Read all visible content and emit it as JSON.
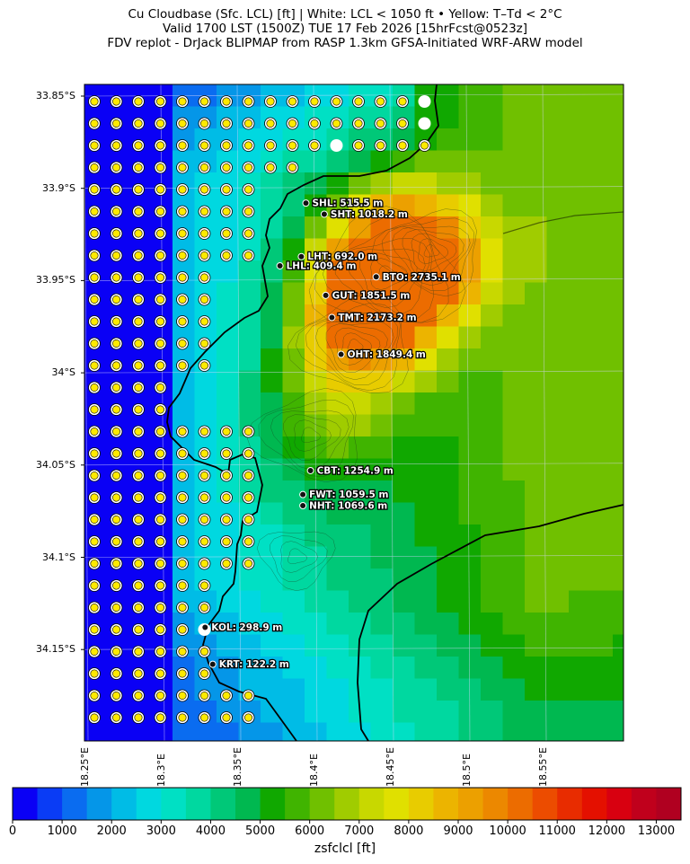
{
  "header": {
    "line1": "Cu Cloudbase (Sfc. LCL) [ft]  |  White: LCL < 1050 ft • Yellow: T–Td < 2°C",
    "line2": "Valid 1700 LST (1500Z) TUE 17 Feb 2026 [15hrFcst@0523z]",
    "line3": "FDV replot - DrJack BLIPMAP from RASP 1.3km GFSA-Initiated WRF-ARW model"
  },
  "map": {
    "lat_labels": [
      "33.85°S",
      "33.9°S",
      "33.95°S",
      "34°S",
      "34.05°S",
      "34.1°S",
      "34.15°S"
    ],
    "lon_labels": [
      "18.25°E",
      "18.3°E",
      "18.35°E",
      "18.4°E",
      "18.45°E",
      "18.5°E",
      "18.55°E"
    ],
    "stations": [
      {
        "code": "SHL",
        "label": "SHL: 515.5 m",
        "lat": -33.908,
        "lon": 18.395
      },
      {
        "code": "SHT",
        "label": "SHT: 1018.2 m",
        "lat": -33.914,
        "lon": 18.407
      },
      {
        "code": "LHT",
        "label": "LHT: 692.0 m",
        "lat": -33.937,
        "lon": 18.392
      },
      {
        "code": "LHL",
        "label": "LHL: 409.4 m",
        "lat": -33.942,
        "lon": 18.378
      },
      {
        "code": "BTO",
        "label": "BTO: 2735.1 m",
        "lat": -33.948,
        "lon": 18.441
      },
      {
        "code": "GUT",
        "label": "GUT: 1851.5 m",
        "lat": -33.958,
        "lon": 18.408
      },
      {
        "code": "TMT",
        "label": "TMT: 2173.2 m",
        "lat": -33.97,
        "lon": 18.412
      },
      {
        "code": "OHT",
        "label": "OHT: 1849.4 m",
        "lat": -33.99,
        "lon": 18.418
      },
      {
        "code": "CBT",
        "label": "CBT: 1254.9 m",
        "lat": -34.053,
        "lon": 18.398
      },
      {
        "code": "FWT",
        "label": "FWT: 1059.5 m",
        "lat": -34.066,
        "lon": 18.393
      },
      {
        "code": "NHT",
        "label": "NHT: 1069.6 m",
        "lat": -34.072,
        "lon": 18.393
      },
      {
        "code": "KOL",
        "label": "KOL: 298.9 m",
        "lat": -34.138,
        "lon": 18.329
      },
      {
        "code": "KRT",
        "label": "KRT: 122.2 m",
        "lat": -34.158,
        "lon": 18.334
      }
    ]
  },
  "colorbar": {
    "label": "zsfclcl [ft]",
    "tick_labels": [
      "0",
      "1000",
      "2000",
      "3000",
      "4000",
      "5000",
      "6000",
      "7000",
      "8000",
      "9000",
      "10000",
      "11000",
      "12000",
      "13000"
    ],
    "max": 13500,
    "step": 500,
    "colors": [
      "#0a00f5",
      "#0a3cf5",
      "#0a6cf0",
      "#0596e8",
      "#00bce6",
      "#00d8e0",
      "#00e0c4",
      "#00d8a0",
      "#00c878",
      "#00b850",
      "#10a800",
      "#40b400",
      "#70c000",
      "#a0cc00",
      "#c8d800",
      "#e0e000",
      "#e8cc00",
      "#ecb400",
      "#eca000",
      "#ec8800",
      "#ec6c00",
      "#ec4c00",
      "#e82c00",
      "#e41000",
      "#d80010",
      "#c0001c",
      "#b00020"
    ]
  }
}
